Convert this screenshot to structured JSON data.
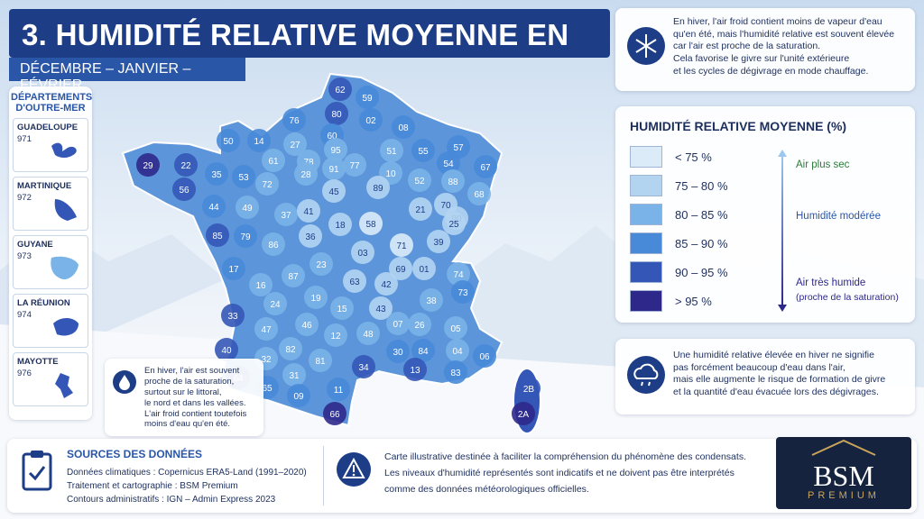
{
  "header": {
    "title": "3. HUMIDITÉ RELATIVE MOYENNE EN HIVER",
    "subtitle": "DÉCEMBRE – JANVIER – FÉVRIER"
  },
  "overseas": {
    "title": "DÉPARTEMENTS D'OUTRE-MER",
    "items": [
      {
        "name": "GUADELOUPE",
        "code": "971"
      },
      {
        "name": "MARTINIQUE",
        "code": "972"
      },
      {
        "name": "GUYANE",
        "code": "973"
      },
      {
        "name": "LA RÉUNION",
        "code": "974"
      },
      {
        "name": "MAYOTTE",
        "code": "976"
      }
    ]
  },
  "info_top": {
    "lines": [
      "En hiver, l'air froid contient moins de vapeur d'eau",
      "qu'en été, mais l'humidité relative est souvent élevée",
      "car l'air est proche de la saturation.",
      "Cela favorise le givre sur l'unité extérieure",
      "et les cycles de dégivrage en mode chauffage."
    ]
  },
  "legend": {
    "title": "HUMIDITÉ RELATIVE MOYENNE (%)",
    "classes": [
      {
        "label": "< 75 %",
        "color": "#dcebf8"
      },
      {
        "label": "75 – 80 %",
        "color": "#b3d4f1"
      },
      {
        "label": "80 – 85 %",
        "color": "#7ab3e7"
      },
      {
        "label": "85 – 90 %",
        "color": "#4889d8"
      },
      {
        "label": "90 – 95 %",
        "color": "#3456b6"
      },
      {
        "label": "> 95 %",
        "color": "#2e288a"
      }
    ],
    "scale": {
      "dry": "Air plus sec",
      "moderate": "Humidité modérée",
      "humid": "Air très humide",
      "humid_note": "(proche de la saturation)"
    }
  },
  "note_right": {
    "lines": [
      "Une humidité relative élevée en hiver ne signifie",
      "pas forcément beaucoup d'eau dans l'air,",
      "mais elle augmente le risque de formation de givre",
      "et la quantité d'eau évacuée lors des dégivrages."
    ]
  },
  "map_note": {
    "lines": [
      "En hiver, l'air est souvent",
      "proche de la saturation,",
      "surtout sur le littoral,",
      "le nord et dans les vallées.",
      "L'air froid contient toutefois",
      "moins d'eau qu'en été."
    ]
  },
  "sources": {
    "title": "SOURCES DES DONNÉES",
    "lines": [
      "Données climatiques : Copernicus ERA5-Land (1991–2020)",
      "Traitement et cartographie : BSM Premium",
      "Contours administratifs : IGN – Admin Express 2023"
    ]
  },
  "disclaimer": {
    "lines": [
      "Carte illustrative destinée à faciliter la compréhension du phénomène des condensats.",
      "Les niveaux d'humidité représentés sont indicatifs et ne doivent pas être interprétés",
      "comme des données météorologiques officielles."
    ]
  },
  "logo": {
    "name": "BSM",
    "tagline": "PREMIUM"
  },
  "map": {
    "departments": [
      {
        "code": "62",
        "class": 4
      },
      {
        "code": "59",
        "class": 3
      },
      {
        "code": "80",
        "class": 4
      },
      {
        "code": "02",
        "class": 3
      },
      {
        "code": "08",
        "class": 3
      },
      {
        "code": "76",
        "class": 3
      },
      {
        "code": "14",
        "class": 3
      },
      {
        "code": "50",
        "class": 3
      },
      {
        "code": "27",
        "class": 2
      },
      {
        "code": "60",
        "class": 3
      },
      {
        "code": "95",
        "class": 2
      },
      {
        "code": "51",
        "class": 2
      },
      {
        "code": "55",
        "class": 3
      },
      {
        "code": "57",
        "class": 3
      },
      {
        "code": "54",
        "class": 3
      },
      {
        "code": "67",
        "class": 3
      },
      {
        "code": "61",
        "class": 2
      },
      {
        "code": "78",
        "class": 2
      },
      {
        "code": "91",
        "class": 2
      },
      {
        "code": "77",
        "class": 2
      },
      {
        "code": "10",
        "class": 2
      },
      {
        "code": "52",
        "class": 2
      },
      {
        "code": "88",
        "class": 2
      },
      {
        "code": "68",
        "class": 2
      },
      {
        "code": "29",
        "class": 5
      },
      {
        "code": "22",
        "class": 4
      },
      {
        "code": "56",
        "class": 4
      },
      {
        "code": "35",
        "class": 3
      },
      {
        "code": "53",
        "class": 3
      },
      {
        "code": "28",
        "class": 2
      },
      {
        "code": "72",
        "class": 2
      },
      {
        "code": "45",
        "class": 1
      },
      {
        "code": "89",
        "class": 1
      },
      {
        "code": "21",
        "class": 1
      },
      {
        "code": "70",
        "class": 1
      },
      {
        "code": "90",
        "class": 1
      },
      {
        "code": "44",
        "class": 3
      },
      {
        "code": "49",
        "class": 2
      },
      {
        "code": "37",
        "class": 2
      },
      {
        "code": "41",
        "class": 1
      },
      {
        "code": "58",
        "class": 0
      },
      {
        "code": "25",
        "class": 1
      },
      {
        "code": "18",
        "class": 1
      },
      {
        "code": "36",
        "class": 1
      },
      {
        "code": "85",
        "class": 4
      },
      {
        "code": "79",
        "class": 3
      },
      {
        "code": "86",
        "class": 2
      },
      {
        "code": "71",
        "class": 0
      },
      {
        "code": "39",
        "class": 1
      },
      {
        "code": "03",
        "class": 1
      },
      {
        "code": "23",
        "class": 2
      },
      {
        "code": "87",
        "class": 2
      },
      {
        "code": "17",
        "class": 3
      },
      {
        "code": "16",
        "class": 2
      },
      {
        "code": "63",
        "class": 1
      },
      {
        "code": "69",
        "class": 1
      },
      {
        "code": "01",
        "class": 1
      },
      {
        "code": "74",
        "class": 2
      },
      {
        "code": "42",
        "class": 1
      },
      {
        "code": "19",
        "class": 2
      },
      {
        "code": "24",
        "class": 2
      },
      {
        "code": "15",
        "class": 2
      },
      {
        "code": "43",
        "class": 1
      },
      {
        "code": "38",
        "class": 2
      },
      {
        "code": "73",
        "class": 3
      },
      {
        "code": "33",
        "class": 4
      },
      {
        "code": "47",
        "class": 2
      },
      {
        "code": "46",
        "class": 2
      },
      {
        "code": "12",
        "class": 2
      },
      {
        "code": "48",
        "class": 2
      },
      {
        "code": "07",
        "class": 2
      },
      {
        "code": "26",
        "class": 2
      },
      {
        "code": "05",
        "class": 2
      },
      {
        "code": "40",
        "class": 4
      },
      {
        "code": "82",
        "class": 2
      },
      {
        "code": "81",
        "class": 2
      },
      {
        "code": "30",
        "class": 3
      },
      {
        "code": "84",
        "class": 3
      },
      {
        "code": "04",
        "class": 2
      },
      {
        "code": "06",
        "class": 3
      },
      {
        "code": "32",
        "class": 2
      },
      {
        "code": "31",
        "class": 2
      },
      {
        "code": "34",
        "class": 4
      },
      {
        "code": "13",
        "class": 4
      },
      {
        "code": "83",
        "class": 3
      },
      {
        "code": "64",
        "class": 4
      },
      {
        "code": "65",
        "class": 3
      },
      {
        "code": "09",
        "class": 3
      },
      {
        "code": "11",
        "class": 3
      },
      {
        "code": "66",
        "class": 5
      },
      {
        "code": "2B",
        "class": 4
      },
      {
        "code": "2A",
        "class": 5
      }
    ]
  }
}
